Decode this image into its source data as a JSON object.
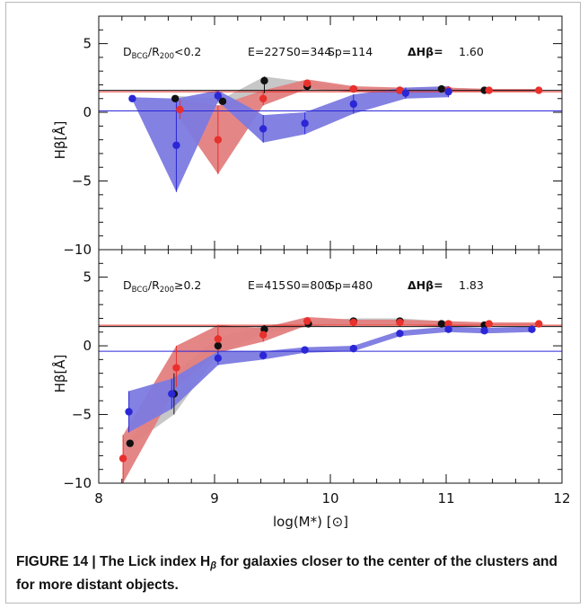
{
  "caption": {
    "prefix": "FIGURE 14 | The Lick index H",
    "subscript": "β",
    "suffix": " for galaxies closer to the center of the clusters and for more distant objects."
  },
  "colors": {
    "red": "#e8302c",
    "red_fill": "#e37f7f",
    "blue": "#2b27d6",
    "blue_fill": "#7c7ae0",
    "black": "#111111",
    "gray_fill": "#c4c4c4"
  },
  "chart_data": [
    {
      "type": "line",
      "title": "D_BCG/R_200<0.2   E=227  S0=344  Sp=114",
      "annotation": "ΔHβ=  1.60",
      "text_parts": {
        "d": "D",
        "d_sub": "BCG",
        "slash": "/R",
        "r_sub": "200",
        "cond": "<0.2",
        "e": "E=227",
        "s0": "S0=344",
        "sp": "Sp=114",
        "delta": "ΔHβ=",
        "delta_val": "1.60"
      },
      "xlabel": "",
      "ylabel": "Hβ[Å]",
      "xlim": [
        8,
        12
      ],
      "ylim": [
        -10,
        7
      ],
      "yticks": [
        -10,
        -5,
        0,
        5
      ],
      "xticks": [
        8,
        9,
        10,
        11,
        12
      ],
      "reference_lines": [
        {
          "color": "black",
          "y": 1.6
        },
        {
          "color": "red",
          "y": 1.5
        },
        {
          "color": "blue",
          "y": 0.1
        }
      ],
      "series": [
        {
          "name": "",
          "color": "black",
          "x": [
            8.66,
            9.07,
            9.43,
            9.8,
            10.2,
            10.6,
            10.96,
            11.33
          ],
          "y": [
            1.0,
            0.8,
            2.3,
            1.9,
            1.7,
            1.6,
            1.7,
            1.6
          ],
          "band_low": [
            0.8,
            0.6,
            1.4,
            1.6,
            1.6,
            1.5,
            1.6,
            1.5
          ],
          "band_high": [
            1.2,
            1.0,
            2.6,
            2.2,
            1.8,
            1.7,
            1.8,
            1.7
          ]
        },
        {
          "name": "",
          "color": "red",
          "x": [
            8.7,
            9.03,
            9.42,
            9.8,
            10.2,
            10.6,
            11.02,
            11.37,
            11.8
          ],
          "y": [
            0.2,
            -2.0,
            1.0,
            2.1,
            1.7,
            1.6,
            1.6,
            1.6,
            1.6
          ],
          "band_low": [
            -0.5,
            -4.5,
            0.5,
            1.7,
            1.5,
            1.4,
            1.5,
            1.5,
            1.5
          ],
          "band_high": [
            0.9,
            0.5,
            1.6,
            2.4,
            1.9,
            1.8,
            1.8,
            1.7,
            1.7
          ]
        },
        {
          "name": "",
          "color": "blue",
          "x": [
            8.29,
            8.67,
            9.03,
            9.42,
            9.78,
            10.2,
            10.65,
            11.02
          ],
          "y": [
            1.0,
            -2.4,
            1.2,
            -1.2,
            -0.8,
            0.6,
            1.4,
            1.5
          ],
          "band_low": [
            0.9,
            -5.8,
            0.8,
            -2.2,
            -1.6,
            -0.1,
            1.0,
            1.1
          ],
          "band_high": [
            1.1,
            1.0,
            1.6,
            -0.2,
            0.0,
            1.3,
            1.8,
            1.9
          ]
        }
      ]
    },
    {
      "type": "line",
      "title": "D_BCG/R_200≥0.2   E=415  S0=800  Sp=480",
      "annotation": "ΔHβ=  1.83",
      "text_parts": {
        "d": "D",
        "d_sub": "BCG",
        "slash": "/R",
        "r_sub": "200",
        "cond": "≥0.2",
        "e": "E=415",
        "s0": "S0=800",
        "sp": "Sp=480",
        "delta": "ΔHβ=",
        "delta_val": "1.83"
      },
      "xlabel": "log(M*) [⊙]",
      "ylabel": "Hβ[Å]",
      "xlim": [
        8,
        12
      ],
      "ylim": [
        -10,
        7
      ],
      "yticks": [
        -10,
        -5,
        0,
        5
      ],
      "xticks": [
        8,
        9,
        10,
        11,
        12
      ],
      "xtick_labels": [
        "8",
        "9",
        "10",
        "11",
        "12"
      ],
      "reference_lines": [
        {
          "color": "black",
          "y": 1.4
        },
        {
          "color": "red",
          "y": 1.5
        },
        {
          "color": "blue",
          "y": -0.4
        }
      ],
      "series": [
        {
          "name": "",
          "color": "black",
          "x": [
            8.27,
            8.65,
            9.03,
            9.43,
            9.81,
            10.2,
            10.6,
            10.96,
            11.33
          ],
          "y": [
            -7.1,
            -3.5,
            0.0,
            1.2,
            1.6,
            1.8,
            1.8,
            1.6,
            1.5
          ],
          "band_low": [
            -7.3,
            -5.0,
            -0.6,
            0.9,
            1.4,
            1.6,
            1.6,
            1.4,
            1.4
          ],
          "band_high": [
            -6.9,
            -2.0,
            0.6,
            1.5,
            1.8,
            2.0,
            2.0,
            1.8,
            1.6
          ]
        },
        {
          "name": "",
          "color": "red",
          "x": [
            8.21,
            8.67,
            9.03,
            9.42,
            9.8,
            10.2,
            10.6,
            11.02,
            11.37,
            11.8
          ],
          "y": [
            -8.2,
            -1.6,
            0.5,
            0.8,
            1.8,
            1.7,
            1.7,
            1.6,
            1.6,
            1.6
          ],
          "band_low": [
            -10.0,
            -3.0,
            -0.5,
            0.3,
            1.5,
            1.5,
            1.5,
            1.4,
            1.5,
            1.5
          ],
          "band_high": [
            -6.5,
            0.0,
            1.5,
            1.3,
            2.1,
            1.9,
            1.9,
            1.8,
            1.7,
            1.7
          ]
        },
        {
          "name": "",
          "color": "blue",
          "x": [
            8.26,
            8.63,
            9.03,
            9.42,
            9.78,
            10.2,
            10.6,
            11.02,
            11.33,
            11.74
          ],
          "y": [
            -4.8,
            -3.5,
            -0.9,
            -0.7,
            -0.3,
            -0.2,
            0.9,
            1.2,
            1.1,
            1.2
          ],
          "band_low": [
            -6.3,
            -4.6,
            -1.4,
            -1.0,
            -0.5,
            -0.4,
            0.7,
            1.0,
            0.9,
            1.0
          ],
          "band_high": [
            -3.3,
            -2.4,
            -0.4,
            -0.4,
            -0.1,
            0.0,
            1.1,
            1.4,
            1.3,
            1.4
          ]
        }
      ]
    }
  ]
}
